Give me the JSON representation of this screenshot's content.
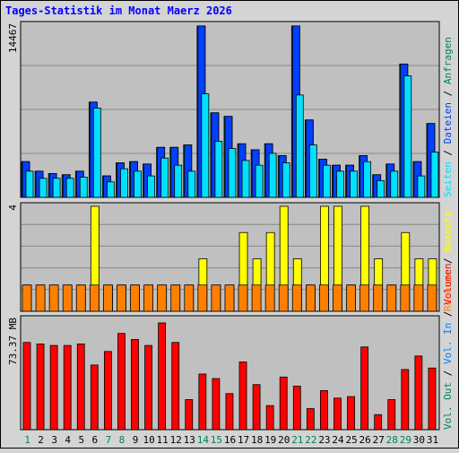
{
  "title": "Tages-Statistik im Monat Maerz 2026",
  "colors": {
    "title": "#0000ff",
    "hits": "#00805c",
    "files": "#0040ff",
    "pages": "#00e0ff",
    "visits": "#ffff00",
    "sites": "#ff8000",
    "volume": "#ff0000",
    "volume_in": "#0080ff",
    "volume_out": "#00805c",
    "weekend": "#00805c",
    "panel_bg": "#c0c0c0",
    "frame_bg": "#d4d4d4"
  },
  "chart_data": [
    {
      "type": "bar",
      "panel": "requests",
      "y_max_label": "14467",
      "ylim": [
        0,
        14467
      ],
      "grid": true,
      "categories": [
        "1",
        "2",
        "3",
        "4",
        "5",
        "6",
        "7",
        "8",
        "9",
        "10",
        "11",
        "12",
        "13",
        "14",
        "15",
        "16",
        "17",
        "18",
        "19",
        "20",
        "21",
        "22",
        "23",
        "24",
        "25",
        "26",
        "27",
        "28",
        "29",
        "30",
        "31"
      ],
      "weekend_days": [
        "1",
        "7",
        "8",
        "14",
        "15",
        "21",
        "22",
        "28",
        "29"
      ],
      "right_axis_labels": [
        {
          "text": "Anfragen",
          "color_key": "hits"
        },
        {
          "text": "Dateien",
          "color_key": "files"
        },
        {
          "text": "Seiten",
          "color_key": "pages"
        }
      ],
      "series": [
        {
          "name": "Anfragen",
          "color_key": "hits",
          "values": [
            3000,
            2200,
            2000,
            1900,
            2200,
            8000,
            1800,
            2900,
            3000,
            2800,
            4200,
            4200,
            4400,
            14400,
            7100,
            6800,
            4500,
            4000,
            4500,
            3500,
            14400,
            6500,
            3200,
            2700,
            2700,
            3500,
            1900,
            2800,
            11200,
            3000,
            6200
          ]
        },
        {
          "name": "Dateien",
          "color_key": "files",
          "values": [
            3000,
            2200,
            2000,
            1900,
            2200,
            8000,
            1800,
            2900,
            3000,
            2800,
            4200,
            4200,
            4400,
            14400,
            7100,
            6800,
            4500,
            4000,
            4500,
            3500,
            14400,
            6500,
            3200,
            2700,
            2700,
            3500,
            1900,
            2800,
            11200,
            3000,
            6200
          ]
        },
        {
          "name": "Seiten",
          "color_key": "pages",
          "values": [
            2200,
            1600,
            1600,
            1600,
            1700,
            7500,
            1300,
            2400,
            2200,
            1800,
            3300,
            2700,
            2200,
            8700,
            4700,
            4100,
            3100,
            2700,
            3700,
            2900,
            8600,
            4400,
            2700,
            2200,
            2200,
            3000,
            1400,
            2200,
            10200,
            1800,
            3800
          ]
        }
      ]
    },
    {
      "type": "bar",
      "panel": "visits",
      "y_max_label": "4",
      "ylim": [
        0,
        4
      ],
      "grid": true,
      "right_axis_labels": [
        {
          "text": "Besuche",
          "color_key": "visits"
        },
        {
          "text": "Rechner",
          "color_key": "sites"
        }
      ],
      "series": [
        {
          "name": "Besuche",
          "color_key": "visits",
          "values": [
            1,
            1,
            1,
            1,
            1,
            4,
            1,
            1,
            1,
            1,
            1,
            1,
            1,
            2,
            1,
            1,
            3,
            2,
            3,
            4,
            2,
            1,
            4,
            4,
            1,
            4,
            2,
            1,
            3,
            2,
            2
          ]
        },
        {
          "name": "Rechner",
          "color_key": "sites",
          "values": [
            1,
            1,
            1,
            1,
            1,
            1,
            1,
            1,
            1,
            1,
            1,
            1,
            1,
            1,
            1,
            1,
            1,
            1,
            1,
            1,
            1,
            1,
            1,
            1,
            1,
            1,
            1,
            1,
            1,
            1,
            1
          ]
        }
      ]
    },
    {
      "type": "bar",
      "panel": "volume",
      "y_max_label": "73.37 MB",
      "ylim": [
        0,
        73.37
      ],
      "grid": false,
      "right_axis_labels": [
        {
          "text": "Volumen",
          "color_key": "volume"
        },
        {
          "text": "Vol. In",
          "color_key": "volume_in"
        },
        {
          "text": "Vol. Out",
          "color_key": "volume_out"
        }
      ],
      "series": [
        {
          "name": "Volumen",
          "color_key": "volume",
          "values": [
            58,
            57,
            56,
            56,
            57,
            43,
            52,
            64,
            60,
            56,
            71,
            58,
            20,
            37,
            34,
            24,
            45,
            30,
            16,
            35,
            29,
            14,
            26,
            21,
            22,
            55,
            10,
            20,
            40,
            49,
            41
          ]
        }
      ]
    }
  ]
}
